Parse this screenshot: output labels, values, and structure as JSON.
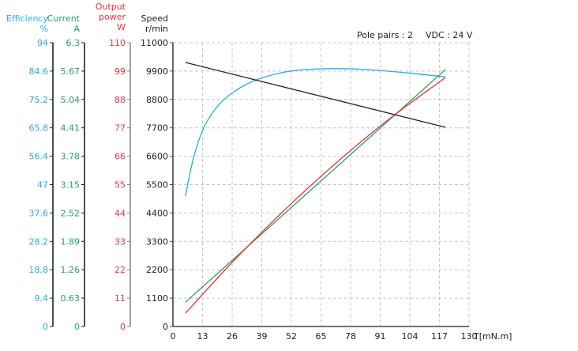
{
  "chart_data": {
    "type": "line",
    "title": "",
    "annotations": {
      "pole_pairs": "Pole pairs : 2",
      "vdc": "VDC : 24 V"
    },
    "xlabel": "T[mN.m]",
    "x_ticks": [
      0,
      13,
      26,
      39,
      52,
      65,
      78,
      91,
      104,
      117,
      130
    ],
    "xlim": [
      0,
      130
    ],
    "grid": true,
    "axes": [
      {
        "id": "efficiency",
        "label": [
          "Efficiency",
          "%"
        ],
        "color": "#29abe2",
        "ticks": [
          "0",
          "9.4",
          "18.8",
          "28.2",
          "37.6",
          "47",
          "56.4",
          "65.8",
          "75.2",
          "84.6",
          "94"
        ],
        "ylim": [
          0,
          94
        ]
      },
      {
        "id": "current",
        "label": [
          "Current",
          "A"
        ],
        "color": "#22a45a",
        "ticks": [
          "0",
          "0.63",
          "1.26",
          "1.89",
          "2.52",
          "3.15",
          "3.78",
          "4.41",
          "5.04",
          "5.67",
          "6.3"
        ],
        "ylim": [
          0,
          6.3
        ]
      },
      {
        "id": "power",
        "label": [
          "Output",
          "power",
          "W"
        ],
        "color": "#e8323c",
        "ticks": [
          "0",
          "11",
          "22",
          "33",
          "44",
          "55",
          "66",
          "77",
          "88",
          "99",
          "110"
        ],
        "ylim": [
          0,
          110
        ]
      },
      {
        "id": "speed",
        "label": [
          "Speed",
          "r/min"
        ],
        "color": "#222222",
        "ticks": [
          "0",
          "1100",
          "2200",
          "3300",
          "4400",
          "5500",
          "6600",
          "7700",
          "8800",
          "9900",
          "11000"
        ],
        "ylim": [
          0,
          11000
        ]
      }
    ],
    "series": [
      {
        "name": "Efficiency",
        "axis": "efficiency",
        "color": "#29abe2",
        "x": [
          5.5,
          9.0,
          13.5,
          19.4,
          26.3,
          35,
          45,
          55,
          70,
          85,
          100,
          119.6
        ],
        "values": [
          43.2,
          55.8,
          65.7,
          72.8,
          77.5,
          81.2,
          83.6,
          84.9,
          85.4,
          85.1,
          84.2,
          82.7
        ]
      },
      {
        "name": "Current",
        "axis": "current",
        "color": "#22a45a",
        "x": [
          5.5,
          119.6
        ],
        "values": [
          0.54,
          5.7
        ]
      },
      {
        "name": "Output power",
        "axis": "power",
        "color": "#e8323c",
        "x": [
          5.5,
          30,
          59.6,
          90,
          119.6
        ],
        "values": [
          5.2,
          28.5,
          53.9,
          77.0,
          96.5
        ]
      },
      {
        "name": "Speed",
        "axis": "speed",
        "color": "#222222",
        "x": [
          5.5,
          119.6
        ],
        "values": [
          10234,
          7721
        ]
      }
    ]
  }
}
